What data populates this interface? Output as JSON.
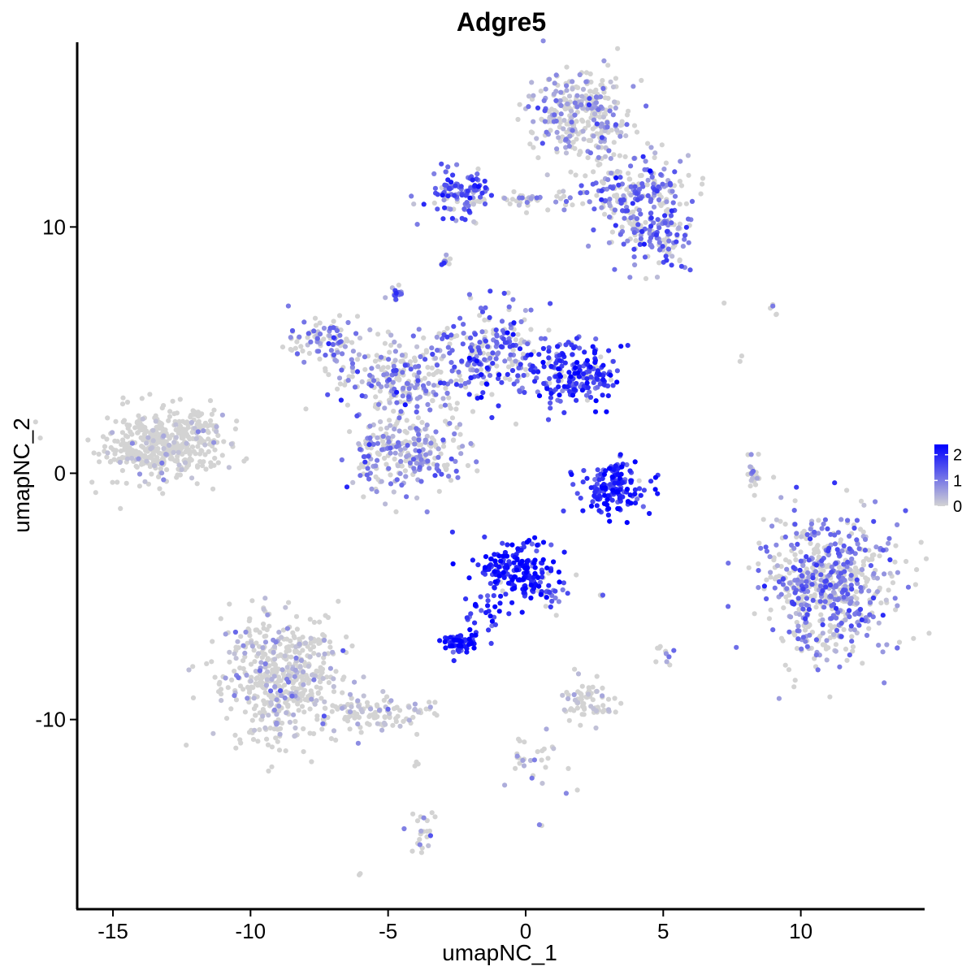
{
  "chart_data": {
    "type": "scatter",
    "title": "Adgre5",
    "xlabel": "umapNC_1",
    "ylabel": "umapNC_2",
    "xlim": [
      -16.3,
      14.5
    ],
    "ylim": [
      -17.7,
      17.5
    ],
    "x_ticks": [
      -15,
      -10,
      -5,
      0,
      5,
      10
    ],
    "x_tick_labels": [
      "-15",
      "-10",
      "-5",
      "0",
      "5",
      "10"
    ],
    "y_ticks": [
      -10,
      0,
      10
    ],
    "y_tick_labels": [
      "-10",
      "0",
      "10"
    ],
    "color_scale": {
      "low_color": "#d3d3d3",
      "high_color": "#0000ff",
      "min": 0,
      "max": 2.4,
      "legend_ticks": [
        0,
        1,
        2
      ],
      "legend_tick_labels": [
        "0",
        "1",
        "2"
      ],
      "legend_placement": "right"
    },
    "clusters": [
      {
        "cx": -13.2,
        "cy": 1.1,
        "sx": 1.1,
        "sy": 0.7,
        "n": 420,
        "expr": 0.05
      },
      {
        "cx": -11.8,
        "cy": 1.8,
        "sx": 0.5,
        "sy": 0.4,
        "n": 60,
        "expr": 0.03
      },
      {
        "cx": -8.8,
        "cy": -8.3,
        "sx": 1.1,
        "sy": 1.3,
        "n": 520,
        "expr": 0.35
      },
      {
        "cx": -5.5,
        "cy": -9.7,
        "sx": 1.1,
        "sy": 0.35,
        "n": 110,
        "expr": 0.15
      },
      {
        "cx": -4.3,
        "cy": 0.8,
        "sx": 1.0,
        "sy": 0.8,
        "n": 260,
        "expr": 0.8
      },
      {
        "cx": -7.2,
        "cy": 5.5,
        "sx": 0.7,
        "sy": 0.45,
        "n": 90,
        "expr": 1.0
      },
      {
        "cx": -4.5,
        "cy": 4.0,
        "sx": 1.3,
        "sy": 0.8,
        "n": 240,
        "expr": 0.9
      },
      {
        "cx": -1.2,
        "cy": 4.8,
        "sx": 1.0,
        "sy": 1.1,
        "n": 230,
        "expr": 1.3
      },
      {
        "cx": 1.8,
        "cy": 4.0,
        "sx": 0.8,
        "sy": 0.6,
        "n": 200,
        "expr": 1.7
      },
      {
        "cx": -4.7,
        "cy": 7.3,
        "sx": 0.15,
        "sy": 0.15,
        "n": 18,
        "expr": 1.2
      },
      {
        "cx": -3.0,
        "cy": 8.6,
        "sx": 0.12,
        "sy": 0.15,
        "n": 10,
        "expr": 1.0
      },
      {
        "cx": -2.4,
        "cy": 11.4,
        "sx": 0.5,
        "sy": 0.5,
        "n": 110,
        "expr": 1.4
      },
      {
        "cx": 0.6,
        "cy": 11.1,
        "sx": 1.0,
        "sy": 0.25,
        "n": 50,
        "expr": 0.9
      },
      {
        "cx": 2.0,
        "cy": 14.5,
        "sx": 0.9,
        "sy": 0.9,
        "n": 320,
        "expr": 0.7
      },
      {
        "cx": 4.0,
        "cy": 11.3,
        "sx": 1.0,
        "sy": 0.9,
        "n": 230,
        "expr": 1.1
      },
      {
        "cx": 4.9,
        "cy": 9.5,
        "sx": 0.6,
        "sy": 0.6,
        "n": 110,
        "expr": 1.2
      },
      {
        "cx": 3.3,
        "cy": -0.6,
        "sx": 0.6,
        "sy": 0.5,
        "n": 170,
        "expr": 1.9
      },
      {
        "cx": -0.4,
        "cy": -3.9,
        "sx": 0.7,
        "sy": 0.7,
        "n": 190,
        "expr": 2.0
      },
      {
        "cx": 0.9,
        "cy": -4.9,
        "sx": 0.5,
        "sy": 0.35,
        "n": 25,
        "expr": 1.5
      },
      {
        "cx": -1.6,
        "cy": -5.6,
        "sx": 0.3,
        "sy": 0.6,
        "n": 25,
        "expr": 1.9
      },
      {
        "cx": -2.4,
        "cy": -6.9,
        "sx": 0.3,
        "sy": 0.2,
        "n": 60,
        "expr": 2.1
      },
      {
        "cx": 11.0,
        "cy": -4.5,
        "sx": 1.2,
        "sy": 1.4,
        "n": 650,
        "expr": 1.0
      },
      {
        "cx": 8.3,
        "cy": 0.1,
        "sx": 0.15,
        "sy": 0.5,
        "n": 22,
        "expr": 0.5
      },
      {
        "cx": 5.0,
        "cy": -7.3,
        "sx": 0.12,
        "sy": 0.2,
        "n": 10,
        "expr": 0.6
      },
      {
        "cx": 2.3,
        "cy": -9.3,
        "sx": 0.45,
        "sy": 0.4,
        "n": 70,
        "expr": 0.2
      },
      {
        "cx": 0.3,
        "cy": -11.6,
        "sx": 0.6,
        "sy": 0.6,
        "n": 30,
        "expr": 0.5
      },
      {
        "cx": -3.7,
        "cy": -14.6,
        "sx": 0.25,
        "sy": 0.45,
        "n": 22,
        "expr": 0.5
      },
      {
        "cx": -3.9,
        "cy": -11.9,
        "sx": 0.05,
        "sy": 0.12,
        "n": 4,
        "expr": 0.1
      },
      {
        "cx": -6.1,
        "cy": -16.3,
        "sx": 0.05,
        "sy": 0.05,
        "n": 2,
        "expr": 0.3
      },
      {
        "cx": 0.6,
        "cy": -14.3,
        "sx": 0.05,
        "sy": 0.05,
        "n": 2,
        "expr": 0.3
      },
      {
        "cx": 9.2,
        "cy": 6.7,
        "sx": 0.3,
        "sy": 0.15,
        "n": 5,
        "expr": 0.2
      },
      {
        "cx": 7.9,
        "cy": 4.7,
        "sx": 0.05,
        "sy": 0.1,
        "n": 2,
        "expr": 0.1
      },
      {
        "cx": 7.2,
        "cy": 6.9,
        "sx": 0.05,
        "sy": 0.05,
        "n": 1,
        "expr": 0.0
      },
      {
        "cx": 2.8,
        "cy": -5.0,
        "sx": 0.1,
        "sy": 0.05,
        "n": 3,
        "expr": 0.2
      }
    ]
  }
}
